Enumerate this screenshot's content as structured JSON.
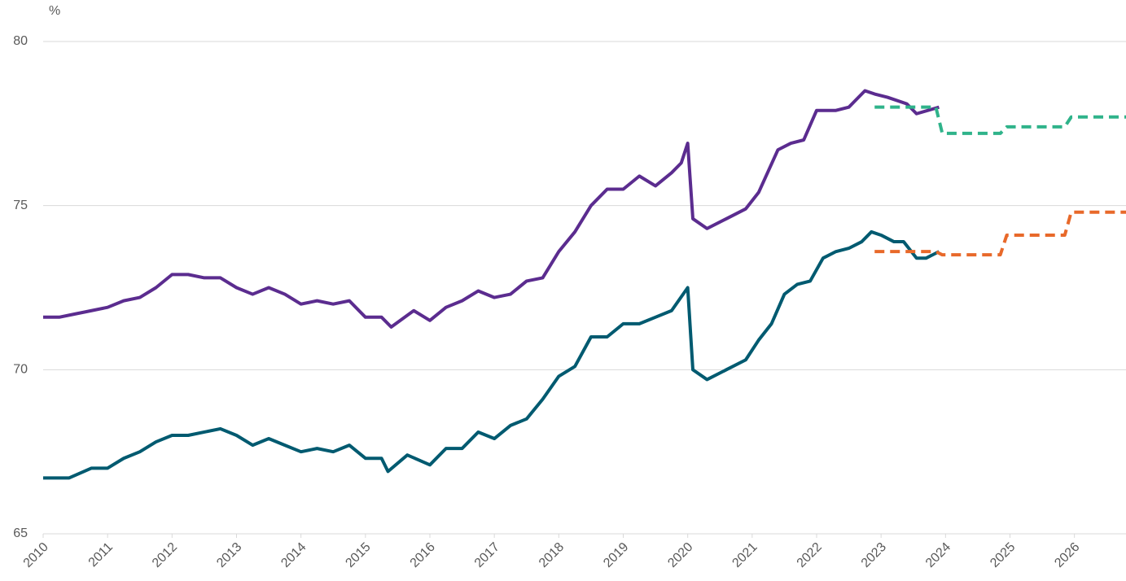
{
  "chart_data": {
    "type": "line",
    "ylabel": "%",
    "xlim": [
      2010,
      2026.8
    ],
    "xticks": [
      2010,
      2011,
      2012,
      2013,
      2014,
      2015,
      2016,
      2017,
      2018,
      2019,
      2020,
      2021,
      2022,
      2023,
      2024,
      2025,
      2026
    ],
    "ylim": [
      65,
      80
    ],
    "yticks": [
      65,
      70,
      75,
      80
    ],
    "grid": true,
    "series": [
      {
        "color": "#5b2c8f",
        "style": "solid",
        "x": [
          2010.0,
          2010.25,
          2010.5,
          2010.75,
          2011.0,
          2011.25,
          2011.5,
          2011.75,
          2012.0,
          2012.25,
          2012.5,
          2012.75,
          2013.0,
          2013.25,
          2013.5,
          2013.75,
          2014.0,
          2014.25,
          2014.5,
          2014.75,
          2015.0,
          2015.25,
          2015.4,
          2015.75,
          2016.0,
          2016.25,
          2016.5,
          2016.75,
          2017.0,
          2017.25,
          2017.5,
          2017.75,
          2018.0,
          2018.25,
          2018.5,
          2018.75,
          2019.0,
          2019.25,
          2019.5,
          2019.75,
          2019.9,
          2020.0,
          2020.08,
          2020.3,
          2020.6,
          2020.9,
          2021.1,
          2021.4,
          2021.6,
          2021.8,
          2022.0,
          2022.3,
          2022.5,
          2022.75,
          2022.9,
          2023.1,
          2023.4,
          2023.55,
          2023.9
        ],
        "values": [
          71.6,
          71.6,
          71.7,
          71.8,
          71.9,
          72.1,
          72.2,
          72.5,
          72.9,
          72.9,
          72.8,
          72.8,
          72.5,
          72.3,
          72.5,
          72.3,
          72.0,
          72.1,
          72.0,
          72.1,
          71.6,
          71.6,
          71.3,
          71.8,
          71.5,
          71.9,
          72.1,
          72.4,
          72.2,
          72.3,
          72.7,
          72.8,
          73.6,
          74.2,
          75.0,
          75.5,
          75.5,
          75.9,
          75.6,
          76.0,
          76.3,
          76.9,
          74.6,
          74.3,
          74.6,
          74.9,
          75.4,
          76.7,
          76.9,
          77.0,
          77.9,
          77.9,
          78.0,
          78.5,
          78.4,
          78.3,
          78.1,
          77.8,
          78.0
        ]
      },
      {
        "color": "#005a70",
        "style": "solid",
        "x": [
          2010.0,
          2010.4,
          2010.75,
          2011.0,
          2011.25,
          2011.5,
          2011.75,
          2012.0,
          2012.25,
          2012.5,
          2012.75,
          2013.0,
          2013.25,
          2013.5,
          2013.75,
          2014.0,
          2014.25,
          2014.5,
          2014.75,
          2015.0,
          2015.25,
          2015.35,
          2015.65,
          2016.0,
          2016.25,
          2016.5,
          2016.75,
          2017.0,
          2017.25,
          2017.5,
          2017.75,
          2018.0,
          2018.25,
          2018.5,
          2018.75,
          2019.0,
          2019.25,
          2019.5,
          2019.75,
          2020.0,
          2020.08,
          2020.3,
          2020.6,
          2020.9,
          2021.1,
          2021.3,
          2021.5,
          2021.7,
          2021.9,
          2022.1,
          2022.3,
          2022.5,
          2022.7,
          2022.85,
          2023.0,
          2023.2,
          2023.35,
          2023.55,
          2023.7,
          2023.9
        ],
        "values": [
          66.7,
          66.7,
          67.0,
          67.0,
          67.3,
          67.5,
          67.8,
          68.0,
          68.0,
          68.1,
          68.2,
          68.0,
          67.7,
          67.9,
          67.7,
          67.5,
          67.6,
          67.5,
          67.7,
          67.3,
          67.3,
          66.9,
          67.4,
          67.1,
          67.6,
          67.6,
          68.1,
          67.9,
          68.3,
          68.5,
          69.1,
          69.8,
          70.1,
          71.0,
          71.0,
          71.4,
          71.4,
          71.6,
          71.8,
          72.5,
          70.0,
          69.7,
          70.0,
          70.3,
          70.9,
          71.4,
          72.3,
          72.6,
          72.7,
          73.4,
          73.6,
          73.7,
          73.9,
          74.2,
          74.1,
          73.9,
          73.9,
          73.4,
          73.4,
          73.6
        ]
      },
      {
        "color": "#2fb38a",
        "style": "dashed",
        "x": [
          2022.9,
          2023.85,
          2023.95,
          2024.85,
          2024.95,
          2025.85,
          2025.95,
          2026.8
        ],
        "values": [
          78.0,
          78.0,
          77.2,
          77.2,
          77.4,
          77.4,
          77.7,
          77.7
        ]
      },
      {
        "color": "#e8692a",
        "style": "dashed",
        "x": [
          2022.9,
          2023.85,
          2023.95,
          2024.85,
          2024.95,
          2025.85,
          2025.95,
          2026.8
        ],
        "values": [
          73.6,
          73.6,
          73.5,
          73.5,
          74.1,
          74.1,
          74.8,
          74.8
        ]
      }
    ]
  }
}
